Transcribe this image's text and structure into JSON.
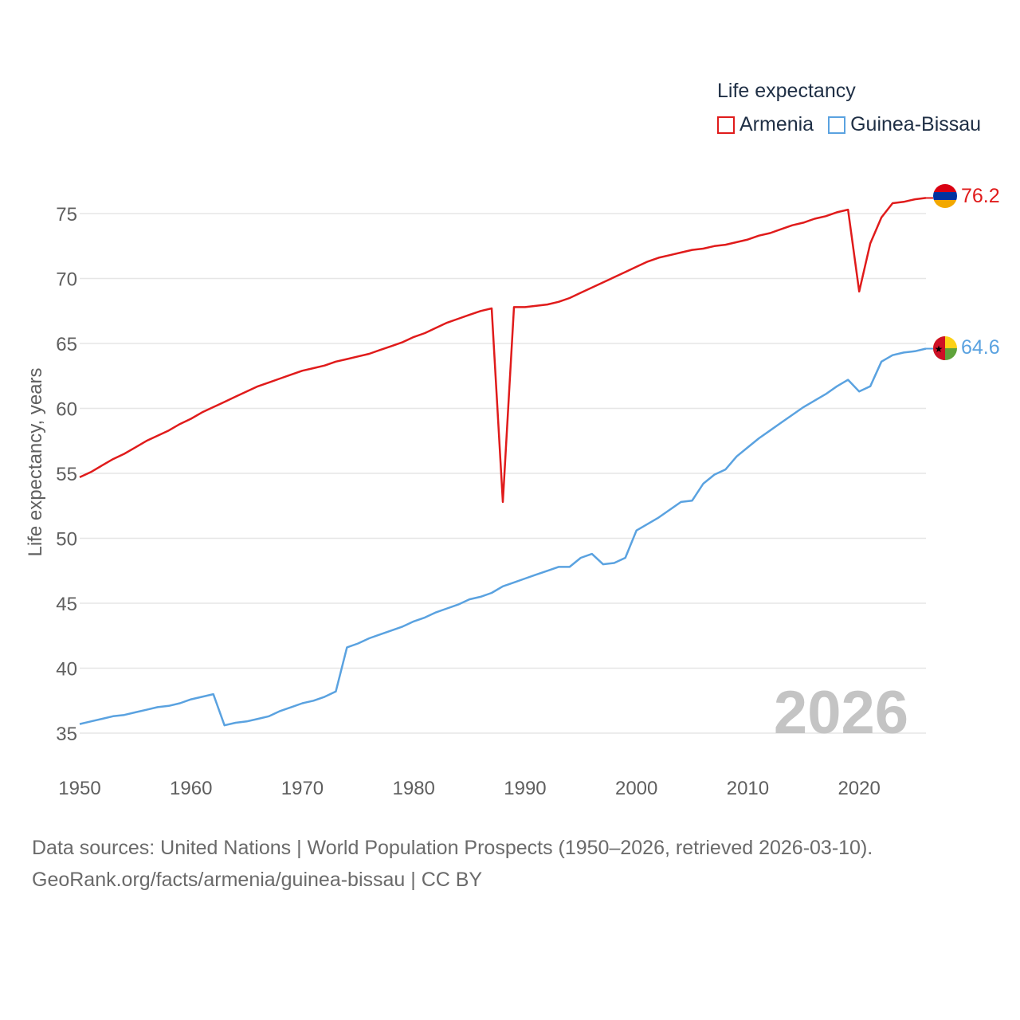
{
  "chart_data": {
    "type": "line",
    "legend_title": "Life expectancy",
    "ylabel": "Life expectancy, years",
    "xlabel": "",
    "xlim": [
      1950,
      2026
    ],
    "ylim": [
      33,
      79
    ],
    "x_ticks": [
      "1950",
      "1960",
      "1970",
      "1980",
      "1990",
      "2000",
      "2010",
      "2020"
    ],
    "y_ticks": [
      "35",
      "40",
      "45",
      "50",
      "55",
      "60",
      "65",
      "70",
      "75"
    ],
    "year_watermark": "2026",
    "legend_position": "top-right",
    "grid": true,
    "x": [
      1950,
      1951,
      1952,
      1953,
      1954,
      1955,
      1956,
      1957,
      1958,
      1959,
      1960,
      1961,
      1962,
      1963,
      1964,
      1965,
      1966,
      1967,
      1968,
      1969,
      1970,
      1971,
      1972,
      1973,
      1974,
      1975,
      1976,
      1977,
      1978,
      1979,
      1980,
      1981,
      1982,
      1983,
      1984,
      1985,
      1986,
      1987,
      1988,
      1989,
      1990,
      1991,
      1992,
      1993,
      1994,
      1995,
      1996,
      1997,
      1998,
      1999,
      2000,
      2001,
      2002,
      2003,
      2004,
      2005,
      2006,
      2007,
      2008,
      2009,
      2010,
      2011,
      2012,
      2013,
      2014,
      2015,
      2016,
      2017,
      2018,
      2019,
      2020,
      2021,
      2022,
      2023,
      2024,
      2025,
      2026
    ],
    "series": [
      {
        "name": "Armenia",
        "color": "#e01b1b",
        "end_label": "76.2",
        "flag": "armenia",
        "values": [
          54.7,
          55.1,
          55.6,
          56.1,
          56.5,
          57.0,
          57.5,
          57.9,
          58.3,
          58.8,
          59.2,
          59.7,
          60.1,
          60.5,
          60.9,
          61.3,
          61.7,
          62.0,
          62.3,
          62.6,
          62.9,
          63.1,
          63.3,
          63.6,
          63.8,
          64.0,
          64.2,
          64.5,
          64.8,
          65.1,
          65.5,
          65.8,
          66.2,
          66.6,
          66.9,
          67.2,
          67.5,
          67.7,
          52.8,
          67.8,
          67.8,
          67.9,
          68.0,
          68.2,
          68.5,
          68.9,
          69.3,
          69.7,
          70.1,
          70.5,
          70.9,
          71.3,
          71.6,
          71.8,
          72.0,
          72.2,
          72.3,
          72.5,
          72.6,
          72.8,
          73.0,
          73.3,
          73.5,
          73.8,
          74.1,
          74.3,
          74.6,
          74.8,
          75.1,
          75.3,
          69.0,
          72.7,
          74.7,
          75.8,
          75.9,
          76.1,
          76.2
        ]
      },
      {
        "name": "Guinea-Bissau",
        "color": "#5aa2e0",
        "end_label": "64.6",
        "flag": "guinea-bissau",
        "values": [
          35.7,
          35.9,
          36.1,
          36.3,
          36.4,
          36.6,
          36.8,
          37.0,
          37.1,
          37.3,
          37.6,
          37.8,
          38.0,
          35.6,
          35.8,
          35.9,
          36.1,
          36.3,
          36.7,
          37.0,
          37.3,
          37.5,
          37.8,
          38.2,
          41.6,
          41.9,
          42.3,
          42.6,
          42.9,
          43.2,
          43.6,
          43.9,
          44.3,
          44.6,
          44.9,
          45.3,
          45.5,
          45.8,
          46.3,
          46.6,
          46.9,
          47.2,
          47.5,
          47.8,
          47.8,
          48.5,
          48.8,
          48.0,
          48.1,
          48.5,
          50.6,
          51.1,
          51.6,
          52.2,
          52.8,
          52.9,
          54.2,
          54.9,
          55.3,
          56.3,
          57.0,
          57.7,
          58.3,
          58.9,
          59.5,
          60.1,
          60.6,
          61.1,
          61.7,
          62.2,
          61.3,
          61.7,
          63.6,
          64.1,
          64.3,
          64.4,
          64.6
        ]
      }
    ]
  },
  "footer": {
    "line1": "Data sources: United Nations | World Population Prospects (1950–2026, retrieved 2026-03-10).",
    "line2": "GeoRank.org/facts/armenia/guinea-bissau | CC BY"
  }
}
